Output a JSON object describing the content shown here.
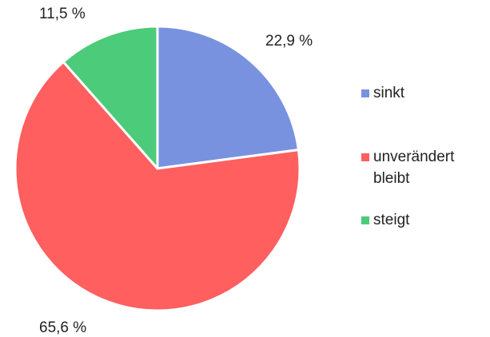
{
  "chart_data": {
    "type": "pie",
    "categories": [
      "sinkt",
      "unverändert bleibt",
      "steigt"
    ],
    "values": [
      22.9,
      65.6,
      11.5
    ],
    "value_labels": [
      "22,9 %",
      "65,6 %",
      "11,5 %"
    ],
    "colors": [
      "#7992e0",
      "#ff5f5f",
      "#4ccb7a"
    ],
    "start_angle_deg": 0,
    "direction": "clockwise",
    "legend": {
      "position": "right",
      "entries": [
        {
          "label": "sinkt",
          "color": "#7992e0"
        },
        {
          "label": "unverändert\nbleibt",
          "color": "#ff5f5f"
        },
        {
          "label": "steigt",
          "color": "#4ccb7a"
        }
      ]
    }
  }
}
